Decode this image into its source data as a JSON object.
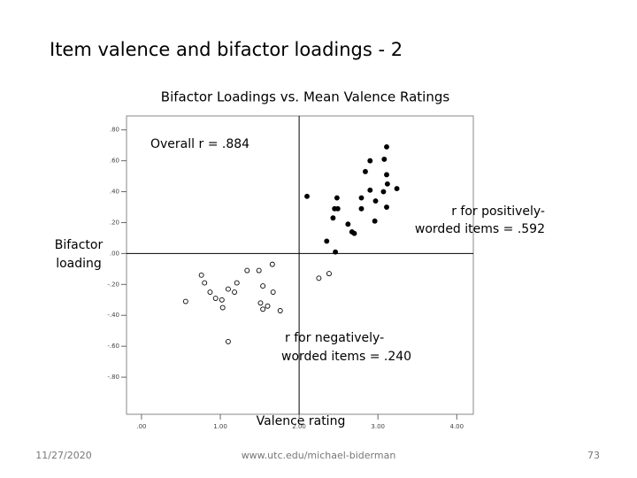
{
  "slide_title": "Item valence and bifactor loadings - 2",
  "footer": {
    "date": "11/27/2020",
    "url": "www.utc.edu/michael-biderman",
    "page": "73"
  },
  "chart_data": {
    "type": "scatter",
    "title": "Bifactor Loadings vs. Mean Valence Ratings",
    "xlabel": "Valence rating",
    "ylabel": [
      "Bifactor",
      "loading"
    ],
    "annotations": [
      {
        "lines": [
          "Overall r = .884"
        ]
      },
      {
        "lines": [
          "r for positively-",
          "worded items = .592"
        ]
      },
      {
        "lines": [
          "r for negatively-",
          "worded items = .240"
        ]
      }
    ],
    "xlim": [
      -0.19,
      4.21
    ],
    "ylim": [
      -1.04,
      0.89
    ],
    "xticks": [
      {
        "value": 0,
        "label": ".00"
      },
      {
        "value": 1,
        "label": "1.00"
      },
      {
        "value": 2,
        "label": "2.00"
      },
      {
        "value": 3,
        "label": "3.00"
      },
      {
        "value": 4,
        "label": "4.00"
      }
    ],
    "yticks": [
      {
        "value": 0.8,
        "label": ".80"
      },
      {
        "value": 0.6,
        "label": ".60"
      },
      {
        "value": 0.4,
        "label": ".40"
      },
      {
        "value": 0.2,
        "label": ".20"
      },
      {
        "value": 0,
        "label": ".00"
      },
      {
        "value": -0.2,
        "label": "-.20"
      },
      {
        "value": -0.4,
        "label": "-.40"
      },
      {
        "value": -0.6,
        "label": "-.60"
      },
      {
        "value": -0.8,
        "label": "-.80"
      }
    ],
    "series": [
      {
        "color": "#000000",
        "marker": "filled",
        "x": [
          3.11,
          2.9,
          3.08,
          2.84,
          3.11,
          3.12,
          2.9,
          3.07,
          3.24,
          2.1,
          2.48,
          2.79,
          2.97,
          2.45,
          2.49,
          2.79,
          3.11,
          2.43,
          2.62,
          2.96,
          2.67,
          2.7,
          2.35,
          2.46
        ],
        "values": [
          0.69,
          0.6,
          0.61,
          0.53,
          0.51,
          0.45,
          0.41,
          0.4,
          0.42,
          0.37,
          0.36,
          0.36,
          0.34,
          0.29,
          0.29,
          0.29,
          0.3,
          0.23,
          0.19,
          0.21,
          0.14,
          0.13,
          0.08,
          0.01
        ]
      },
      {
        "color": "#000000",
        "marker": "open",
        "x": [
          1.66,
          1.34,
          1.49,
          2.38,
          0.76,
          2.25,
          0.8,
          1.21,
          1.54,
          0.87,
          1.1,
          1.18,
          1.67,
          0.94,
          1.02,
          0.56,
          1.51,
          1.6,
          1.54,
          1.03,
          1.76,
          1.1
        ],
        "values": [
          -0.07,
          -0.11,
          -0.11,
          -0.13,
          -0.14,
          -0.16,
          -0.19,
          -0.19,
          -0.21,
          -0.25,
          -0.23,
          -0.25,
          -0.25,
          -0.29,
          -0.3,
          -0.31,
          -0.32,
          -0.34,
          -0.36,
          -0.35,
          -0.37,
          -0.57
        ]
      }
    ]
  }
}
